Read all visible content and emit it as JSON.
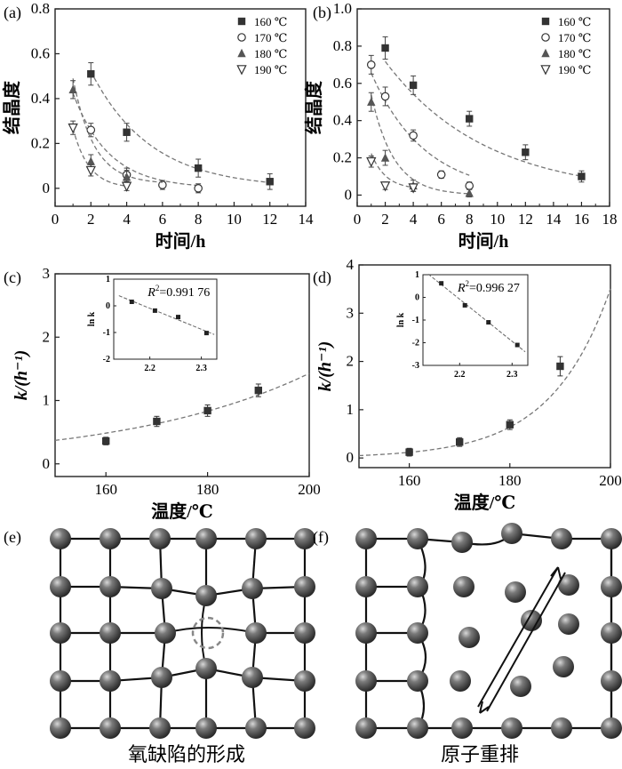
{
  "chart_data": [
    {
      "panel": "(a)",
      "type": "scatter",
      "xlabel": "时间/h",
      "ylabel": "结晶度",
      "xlim": [
        0,
        14
      ],
      "ylim": [
        -0.08,
        0.8
      ],
      "xticks": [
        "0",
        "2",
        "4",
        "6",
        "8",
        "10",
        "12",
        "14"
      ],
      "yticks": [
        "0",
        "0.2",
        "0.4",
        "0.6",
        "0.8"
      ],
      "legend": [
        "160 ℃",
        "170 ℃",
        "180 ℃",
        "190 ℃"
      ],
      "legend_position": "top-right",
      "series": [
        {
          "name": "160 ℃",
          "marker": "square",
          "x": [
            2,
            4,
            8,
            12
          ],
          "y": [
            0.51,
            0.25,
            0.09,
            0.03
          ],
          "err": [
            0.05,
            0.04,
            0.04,
            0.035
          ],
          "fit": {
            "a": 0.95,
            "b": 0.3,
            "c": 0.0,
            "xmin": 2,
            "xmax": 12
          }
        },
        {
          "name": "170 ℃",
          "marker": "circle",
          "x": [
            2,
            4,
            6,
            8
          ],
          "y": [
            0.26,
            0.06,
            0.015,
            0.0
          ],
          "err": [
            0.03,
            0.03,
            0.02,
            0.02
          ],
          "fit": {
            "a": 0.7,
            "b": 0.5,
            "c": 0.0,
            "xmin": 1,
            "xmax": 8
          }
        },
        {
          "name": "180 ℃",
          "marker": "triangle-up",
          "x": [
            1,
            2,
            4
          ],
          "y": [
            0.44,
            0.12,
            0.05
          ],
          "err": [
            0.04,
            0.03,
            0.03
          ],
          "fit": {
            "a": 1.1,
            "b": 0.85,
            "c": 0.02,
            "xmin": 1,
            "xmax": 6
          }
        },
        {
          "name": "190 ℃",
          "marker": "triangle-down",
          "x": [
            1,
            2,
            4
          ],
          "y": [
            0.27,
            0.08,
            0.01
          ],
          "err": [
            0.03,
            0.025,
            0.02
          ],
          "fit": {
            "a": 0.8,
            "b": 1.1,
            "c": 0.0,
            "xmin": 1,
            "xmax": 4
          }
        }
      ]
    },
    {
      "panel": "(b)",
      "type": "scatter",
      "xlabel": "时间/h",
      "ylabel": "结晶度",
      "xlim": [
        0,
        18
      ],
      "ylim": [
        -0.06,
        1.0
      ],
      "xticks": [
        "0",
        "2",
        "4",
        "6",
        "8",
        "10",
        "12",
        "14",
        "16",
        "18"
      ],
      "yticks": [
        "0",
        "0.2",
        "0.4",
        "0.6",
        "0.8",
        "1.0"
      ],
      "legend": [
        "160 ℃",
        "170 ℃",
        "180 ℃",
        "190 ℃"
      ],
      "legend_position": "top-right",
      "series": [
        {
          "name": "160 ℃",
          "marker": "square",
          "x": [
            2,
            4,
            8,
            12,
            16
          ],
          "y": [
            0.79,
            0.59,
            0.41,
            0.23,
            0.1
          ],
          "err": [
            0.06,
            0.05,
            0.04,
            0.04,
            0.03
          ],
          "fit": {
            "a": 0.95,
            "b": 0.14,
            "c": 0.0,
            "xmin": 2,
            "xmax": 16
          }
        },
        {
          "name": "170 ℃",
          "marker": "circle",
          "x": [
            1,
            2,
            4,
            6,
            8
          ],
          "y": [
            0.7,
            0.53,
            0.32,
            0.11,
            0.05
          ],
          "err": [
            0.05,
            0.05,
            0.03,
            0.02,
            0.02
          ],
          "fit": {
            "a": 0.85,
            "b": 0.26,
            "c": 0.0,
            "xmin": 1,
            "xmax": 8
          }
        },
        {
          "name": "180 ℃",
          "marker": "triangle-up",
          "x": [
            1,
            2,
            4,
            8
          ],
          "y": [
            0.5,
            0.2,
            0.05,
            0.01
          ],
          "err": [
            0.05,
            0.04,
            0.03,
            0.02
          ],
          "fit": {
            "a": 1.0,
            "b": 0.62,
            "c": 0.0,
            "xmin": 1,
            "xmax": 8
          }
        },
        {
          "name": "190 ℃",
          "marker": "triangle-down",
          "x": [
            1,
            2,
            4
          ],
          "y": [
            0.18,
            0.05,
            0.04
          ],
          "err": [
            0.03,
            0.02,
            0.02
          ],
          "fit": {
            "a": 0.5,
            "b": 0.95,
            "c": 0.03,
            "xmin": 1,
            "xmax": 4
          }
        }
      ]
    },
    {
      "panel": "(c)",
      "type": "scatter",
      "xlabel": "温度/℃",
      "ylabel": "k/(h⁻¹)",
      "xlim": [
        150,
        200
      ],
      "ylim": [
        -0.2,
        3.0
      ],
      "xticks": [
        "160",
        "180",
        "200"
      ],
      "yticks": [
        "0",
        "1",
        "2",
        "3"
      ],
      "points": {
        "x": [
          160,
          170,
          180,
          190
        ],
        "y": [
          0.36,
          0.67,
          0.84,
          1.16
        ],
        "err": [
          0.06,
          0.08,
          0.09,
          0.1
        ]
      },
      "fit": {
        "type": "exp",
        "a": 0.37,
        "T0": 150,
        "b": 0.027
      },
      "inset": {
        "xlabel": "",
        "ylabel": "ln k",
        "xlim": [
          2.13,
          2.33
        ],
        "ylim": [
          -2,
          1
        ],
        "xticks": [
          "2.2",
          "2.3"
        ],
        "yticks": [
          "1",
          "0",
          "-1",
          "-2"
        ],
        "x": [
          2.165,
          2.21,
          2.255,
          2.31
        ],
        "y": [
          0.15,
          -0.18,
          -0.42,
          -1.02
        ],
        "r2_label": "R",
        "r2_value": "=0.991 76"
      }
    },
    {
      "panel": "(d)",
      "type": "scatter",
      "xlabel": "温度/℃",
      "ylabel": "k/(h⁻¹)",
      "xlim": [
        150,
        200
      ],
      "ylim": [
        -0.2,
        4.0
      ],
      "xticks": [
        "160",
        "180",
        "200"
      ],
      "yticks": [
        "0",
        "1",
        "2",
        "3",
        "4"
      ],
      "points": {
        "x": [
          160,
          170,
          180,
          190
        ],
        "y": [
          0.12,
          0.33,
          0.69,
          1.9
        ],
        "err": [
          0.08,
          0.09,
          0.1,
          0.2
        ]
      },
      "fit": {
        "type": "exp",
        "a": 0.05,
        "T0": 150,
        "b": 0.085
      },
      "inset": {
        "xlabel": "",
        "ylabel": "ln k",
        "xlim": [
          2.13,
          2.33
        ],
        "ylim": [
          -3,
          1
        ],
        "xticks": [
          "2.2",
          "2.3"
        ],
        "yticks": [
          "1",
          "0",
          "-1",
          "-2",
          "-3"
        ],
        "x": [
          2.165,
          2.21,
          2.255,
          2.31
        ],
        "y": [
          0.62,
          -0.35,
          -1.1,
          -2.1
        ],
        "r2_label": "R",
        "r2_value": "=0.996 27"
      }
    }
  ],
  "diagrams": {
    "e": {
      "label": "(e)",
      "caption": "氧缺陷的形成"
    },
    "f": {
      "label": "(f)",
      "caption": "原子重排"
    }
  }
}
